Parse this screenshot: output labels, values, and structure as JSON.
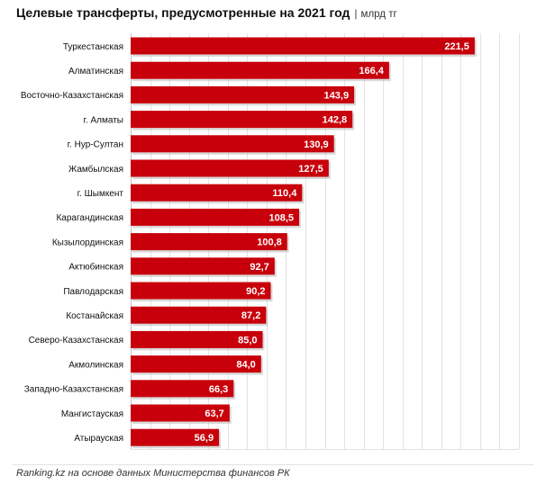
{
  "header": {
    "title": "Целевые трансферты, предусмотренные на 2021  год",
    "separator": "|",
    "unit": "млрд тг"
  },
  "footer": {
    "source": "Ranking.kz на основе данных  Министерства финансов РК"
  },
  "chart_data": {
    "type": "bar",
    "orientation": "horizontal",
    "title": "Целевые трансферты, предусмотренные на 2021  год",
    "unit": "млрд тг",
    "categories": [
      "Туркестанская",
      "Алматинская",
      "Восточно-Казахстанская",
      "г. Алматы",
      "г. Нур-Султан",
      "Жамбылская",
      "г. Шымкент",
      "Карагандинская",
      "Кызылординская",
      "Актюбинская",
      "Павлодарская",
      "Костанайская",
      "Северо-Казахстанская",
      "Акмолинская",
      "Западно-Казахстанская",
      "Мангистауская",
      "Атырауская"
    ],
    "values": [
      221.5,
      166.4,
      143.9,
      142.8,
      130.9,
      127.5,
      110.4,
      108.5,
      100.8,
      92.7,
      90.2,
      87.2,
      85.0,
      84.0,
      66.3,
      63.7,
      56.9
    ],
    "value_labels": [
      "221,5",
      "166,4",
      "143,9",
      "142,8",
      "130,9",
      "127,5",
      "110,4",
      "108,5",
      "100,8",
      "92,7",
      "90,2",
      "87,2",
      "85,0",
      "84,0",
      "66,3",
      "63,7",
      "56,9"
    ],
    "xlim": [
      0,
      250
    ],
    "grid": true,
    "colors": {
      "bar": "#c8000b",
      "bar_shadow": "#b9b9b9",
      "grid": "#e3e3e3",
      "axis": "#c4c4c4",
      "label_text": "#ffffff",
      "category_text": "#111111"
    }
  }
}
